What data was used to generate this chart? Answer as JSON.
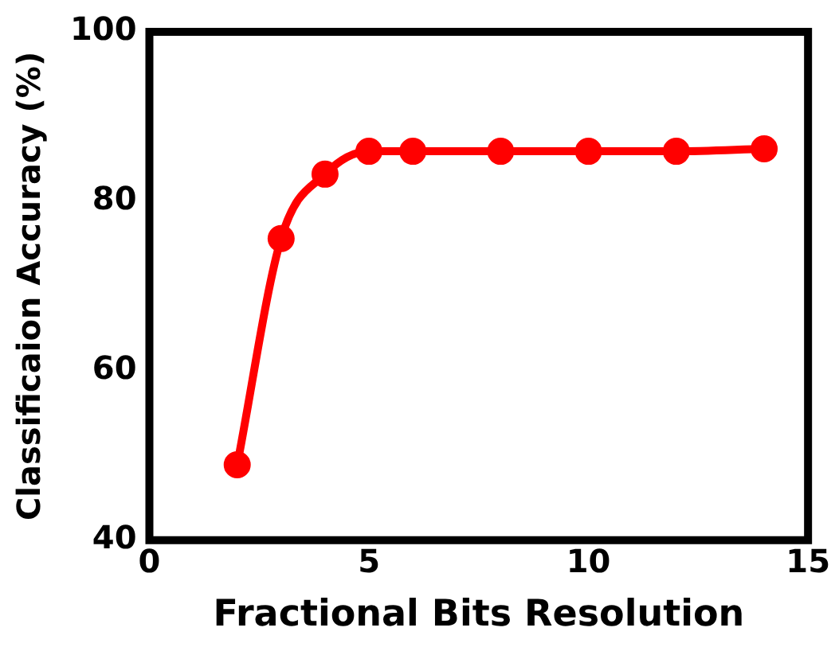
{
  "chart_data": {
    "type": "line",
    "xlabel": "Fractional Bits Resolution",
    "ylabel": "Classificaion Accuracy (%)",
    "x": [
      2,
      3,
      4,
      5,
      6,
      8,
      10,
      12,
      14
    ],
    "series": [
      {
        "color": "#ff0000",
        "values": [
          48.9,
          75.6,
          83.2,
          85.9,
          85.9,
          85.9,
          85.9,
          85.9,
          86.2
        ]
      }
    ],
    "xlim": [
      0,
      15
    ],
    "xticks": [
      0,
      5,
      10,
      15
    ],
    "ylim": [
      40,
      100
    ],
    "yticks": [
      40,
      60,
      80,
      100
    ],
    "grid": false,
    "legend": false,
    "marker": "circle",
    "line_style": "solid"
  }
}
